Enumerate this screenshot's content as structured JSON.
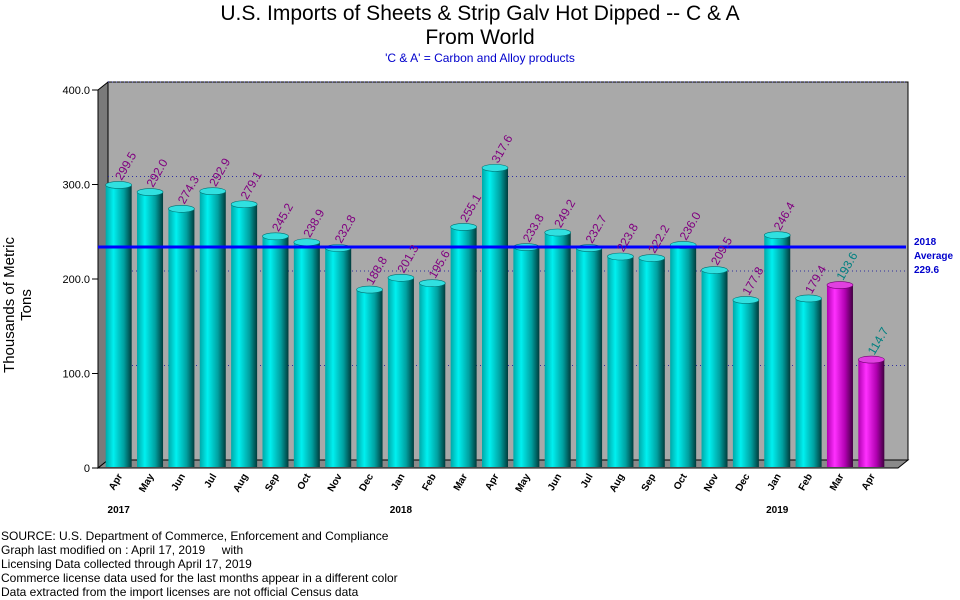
{
  "title_line1": "U.S. Imports of Sheets & Strip Galv Hot Dipped -- C & A",
  "title_line2": "From World",
  "subtitle": "'C & A' = Carbon and Alloy products",
  "ylabel": "Thousands of Metric Tons",
  "average": {
    "year_label": "2018",
    "label": "Average",
    "value": 229.6,
    "value_label": "229.6",
    "color": "#0000ff"
  },
  "footnotes": [
    "SOURCE: U.S. Department of Commerce, Enforcement and Compliance",
    "Graph last modified on : April 17, 2019     with",
    "Licensing Data collected through April 17, 2019",
    "Commerce license data used for the last months appear in a different color",
    "Data extracted from the import licenses are not official Census data"
  ],
  "chart_data": {
    "type": "bar",
    "title": "U.S. Imports of Sheets & Strip Galv Hot Dipped -- C & A From World",
    "ylabel": "Thousands of Metric Tons",
    "ylim": [
      0,
      400
    ],
    "yticks": [
      0,
      100,
      200,
      300,
      400
    ],
    "ytick_labels": [
      "0",
      "100.0",
      "200.0",
      "300.0",
      "400.0"
    ],
    "grid": true,
    "categories": [
      "Apr",
      "May",
      "Jun",
      "Jul",
      "Aug",
      "Sep",
      "Oct",
      "Nov",
      "Dec",
      "Jan",
      "Feb",
      "Mar",
      "Apr",
      "May",
      "Jun",
      "Jul",
      "Aug",
      "Sep",
      "Oct",
      "Nov",
      "Dec",
      "Jan",
      "Feb",
      "Mar",
      "Apr"
    ],
    "year_labels": [
      {
        "text": "2017",
        "index": 0
      },
      {
        "text": "2018",
        "index": 9
      },
      {
        "text": "2019",
        "index": 21
      }
    ],
    "values": [
      299.5,
      292.0,
      274.3,
      292.9,
      279.1,
      245.2,
      238.9,
      232.8,
      188.8,
      201.3,
      195.6,
      255.1,
      317.6,
      233.8,
      249.2,
      232.7,
      223.8,
      222.2,
      236.0,
      209.5,
      177.8,
      246.4,
      179.4,
      193.6,
      114.7
    ],
    "value_labels": [
      "299.5",
      "292.0",
      "274.3",
      "292.9",
      "279.1",
      "245.2",
      "238.9",
      "232.8",
      "188.8",
      "201.3",
      "195.6",
      "255.1",
      "317.6",
      "233.8",
      "249.2",
      "232.7",
      "223.8",
      "222.2",
      "236.0",
      "209.5",
      "177.8",
      "246.4",
      "179.4",
      "193.6",
      "114.7"
    ],
    "license_data_from_index": 23,
    "colors": {
      "census_bar": "#00c8c8",
      "license_bar": "#cc00cc",
      "census_label": "#800080",
      "license_label": "#008080",
      "plot_background": "#a9a9a9",
      "average_line": "#0000ff"
    }
  }
}
